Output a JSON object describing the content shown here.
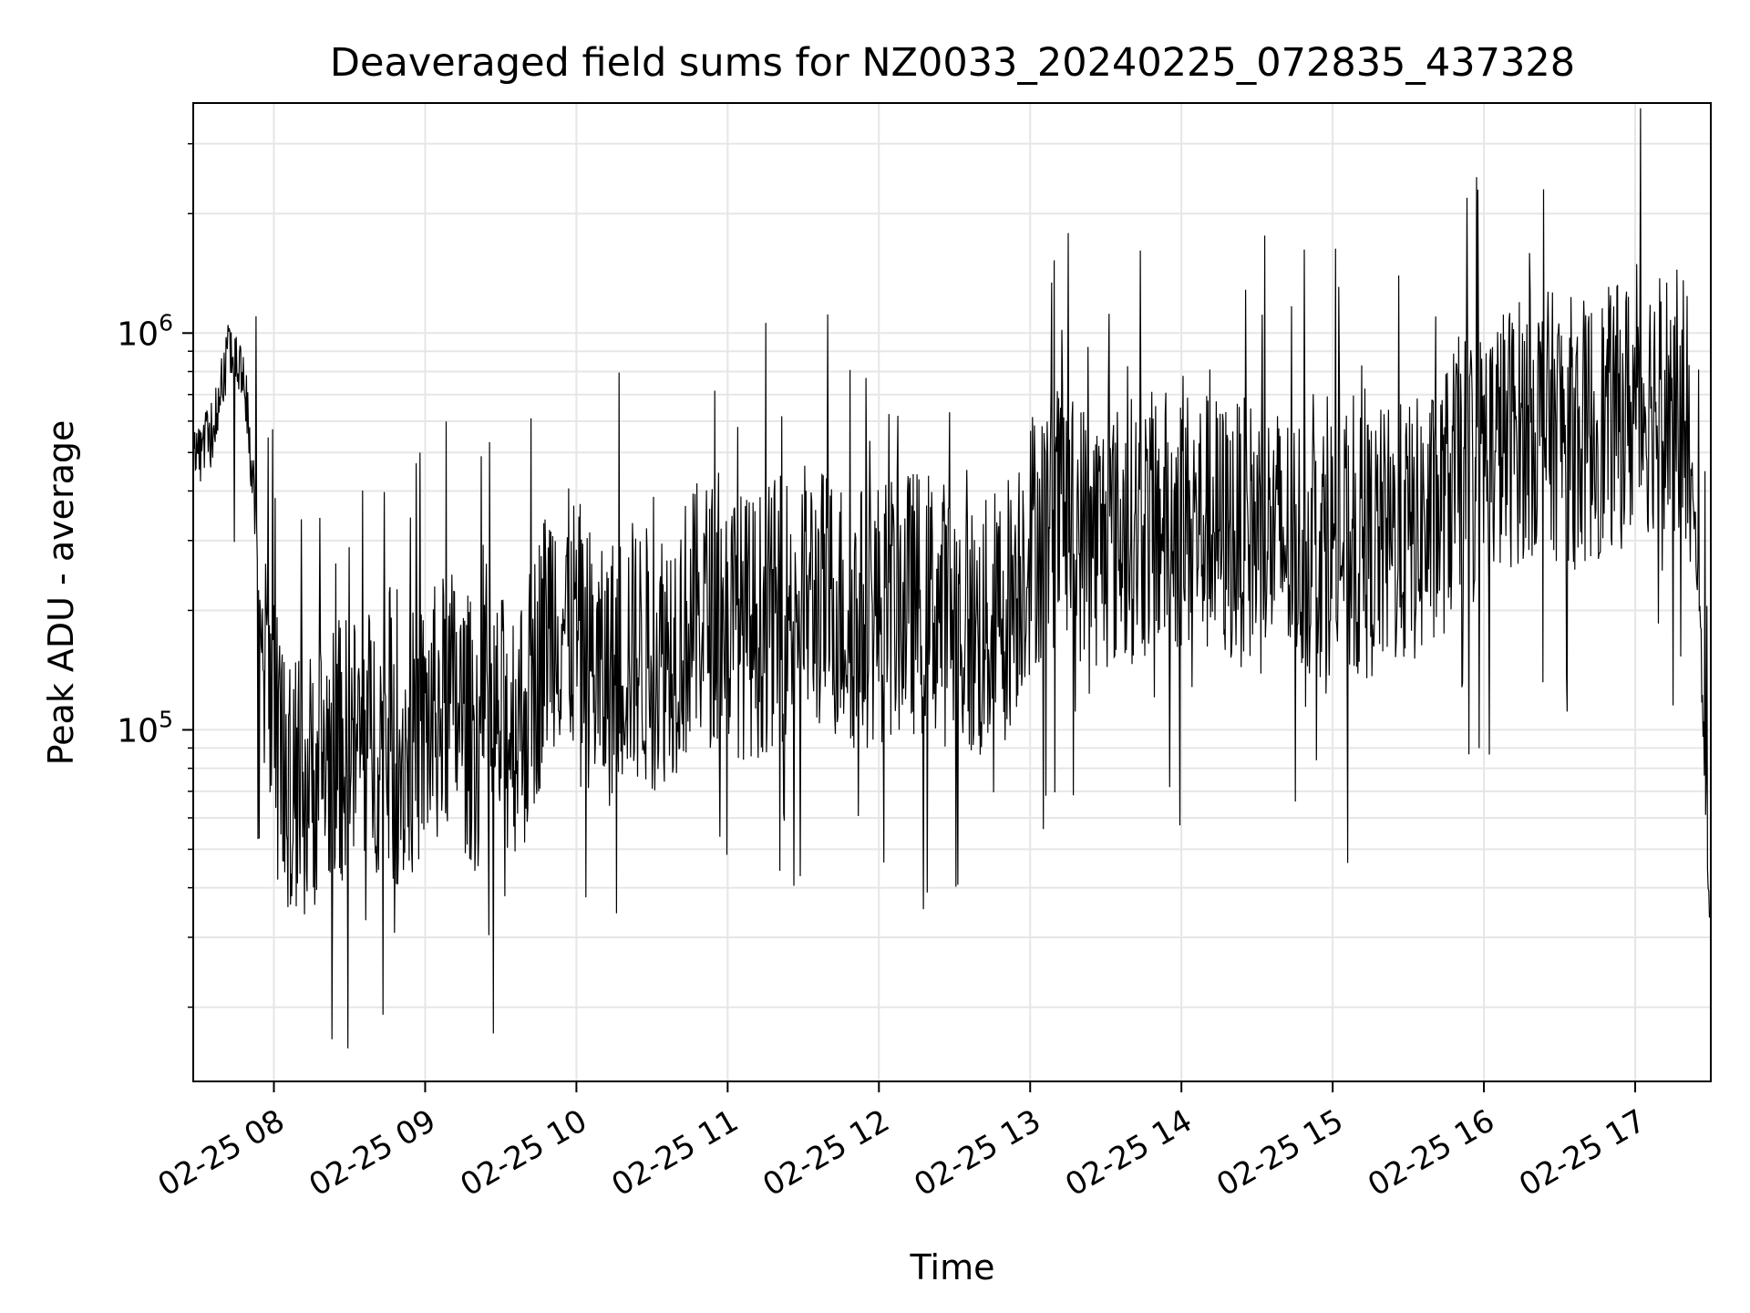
{
  "chart_data": {
    "type": "line",
    "title": "Deaveraged field sums for NZ0033_20240225_072835_437328",
    "xlabel": "Time",
    "ylabel": "Peak ADU - average",
    "yscale": "log",
    "ylim": [
      13000,
      3800000
    ],
    "xlim": [
      "02-25 07:28",
      "02-25 17:30"
    ],
    "grid": true,
    "x_ticks": [
      "02-25 08",
      "02-25 09",
      "02-25 10",
      "02-25 11",
      "02-25 12",
      "02-25 13",
      "02-25 14",
      "02-25 15",
      "02-25 16",
      "02-25 17"
    ],
    "y_ticks": [
      {
        "value": 100000,
        "base": "10",
        "exp": "5"
      },
      {
        "value": 1000000,
        "base": "10",
        "exp": "6"
      }
    ],
    "line_color": "#000000",
    "series": [
      {
        "name": "",
        "x": [
          "02-25 07:28",
          "02-25 07:35",
          "02-25 07:42",
          "02-25 07:48",
          "02-25 07:52",
          "02-25 07:56",
          "02-25 08:00",
          "02-25 08:05",
          "02-25 08:12",
          "02-25 08:20",
          "02-25 08:30",
          "02-25 08:40",
          "02-25 08:50",
          "02-25 09:00",
          "02-25 09:10",
          "02-25 09:20",
          "02-25 09:30",
          "02-25 09:40",
          "02-25 09:50",
          "02-25 10:00",
          "02-25 10:10",
          "02-25 10:20",
          "02-25 10:30",
          "02-25 10:40",
          "02-25 10:50",
          "02-25 11:00",
          "02-25 11:10",
          "02-25 11:20",
          "02-25 11:30",
          "02-25 11:40",
          "02-25 11:50",
          "02-25 12:00",
          "02-25 12:10",
          "02-25 12:20",
          "02-25 12:30",
          "02-25 12:40",
          "02-25 12:50",
          "02-25 13:00",
          "02-25 13:10",
          "02-25 13:20",
          "02-25 13:30",
          "02-25 13:40",
          "02-25 13:50",
          "02-25 14:00",
          "02-25 14:10",
          "02-25 14:20",
          "02-25 14:30",
          "02-25 14:40",
          "02-25 14:50",
          "02-25 15:00",
          "02-25 15:10",
          "02-25 15:20",
          "02-25 15:30",
          "02-25 15:40",
          "02-25 15:50",
          "02-25 16:00",
          "02-25 16:10",
          "02-25 16:20",
          "02-25 16:30",
          "02-25 16:40",
          "02-25 16:50",
          "02-25 17:00",
          "02-25 17:10",
          "02-25 17:20",
          "02-25 17:25",
          "02-25 17:30"
        ],
        "y": [
          480000,
          550000,
          900000,
          800000,
          400000,
          150000,
          100000,
          75000,
          70000,
          85000,
          90000,
          95000,
          85000,
          100000,
          120000,
          95000,
          100000,
          110000,
          200000,
          180000,
          130000,
          160000,
          150000,
          170000,
          200000,
          190000,
          180000,
          200000,
          220000,
          210000,
          190000,
          200000,
          210000,
          210000,
          190000,
          170000,
          200000,
          300000,
          350000,
          320000,
          300000,
          320000,
          330000,
          340000,
          330000,
          310000,
          320000,
          300000,
          290000,
          300000,
          280000,
          300000,
          310000,
          330000,
          450000,
          500000,
          550000,
          600000,
          580000,
          560000,
          600000,
          650000,
          700000,
          650000,
          250000,
          30000
        ]
      }
    ]
  }
}
